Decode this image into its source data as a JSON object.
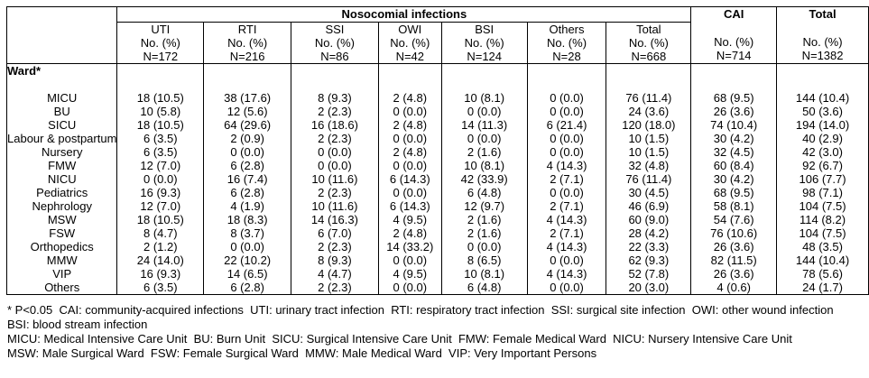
{
  "table": {
    "noso_group_label": "Nosocomial infections",
    "cai_label": "CAI",
    "grand_total_label": "Total",
    "ward_label": "Ward*",
    "no_pct": "No. (%)",
    "columns": [
      {
        "label": "UTI",
        "n": "N=172"
      },
      {
        "label": "RTI",
        "n": "N=216"
      },
      {
        "label": "SSI",
        "n": "N=86"
      },
      {
        "label": "OWI",
        "n": "N=42"
      },
      {
        "label": "BSI",
        "n": "N=124"
      },
      {
        "label": "Others",
        "n": "N=28"
      },
      {
        "label": "Total",
        "n": "N=668"
      }
    ],
    "cai_n": "N=714",
    "grand_n": "N=1382",
    "rows": [
      {
        "ward": "MICU",
        "values": [
          "18 (10.5)",
          "38 (17.6)",
          "8 (9.3)",
          "2 (4.8)",
          "10 (8.1)",
          "0 (0.0)",
          "76 (11.4)",
          "68 (9.5)",
          "144 (10.4)"
        ]
      },
      {
        "ward": "BU",
        "values": [
          "10 (5.8)",
          "12 (5.6)",
          "2 (2.3)",
          "0 (0.0)",
          "0 (0.0)",
          "0 (0.0)",
          "24 (3.6)",
          "26 (3.6)",
          "50 (3.6)"
        ]
      },
      {
        "ward": "SICU",
        "values": [
          "18 (10.5)",
          "64 (29.6)",
          "16 (18.6)",
          "2 (4.8)",
          "14 (11.3)",
          "6 (21.4)",
          "120 (18.0)",
          "74 (10.4)",
          "194 (14.0)"
        ]
      },
      {
        "ward": "Labour & postpartum",
        "values": [
          "6 (3.5)",
          "2 (0.9)",
          "2 (2.3)",
          "0 (0.0)",
          "0 (0.0)",
          "0 (0.0)",
          "10 (1.5)",
          "30 (4.2)",
          "40 (2.9)"
        ]
      },
      {
        "ward": "Nursery",
        "values": [
          "6 (3.5)",
          "0 (0.0)",
          "0 (0.0)",
          "2 (4.8)",
          "2 (1.6)",
          "0 (0.0)",
          "10 (1.5)",
          "32 (4.5)",
          "42 (3.0)"
        ]
      },
      {
        "ward": "FMW",
        "values": [
          "12 (7.0)",
          "6 (2.8)",
          "0 (0.0)",
          "0 (0.0)",
          "10 (8.1)",
          "4 (14.3)",
          "32 (4.8)",
          "60 (8.4)",
          "92 (6.7)"
        ]
      },
      {
        "ward": "NICU",
        "values": [
          "0 (0.0)",
          "16 (7.4)",
          "10 (11.6)",
          "6 (14.3)",
          "42 (33.9)",
          "2 (7.1)",
          "76 (11.4)",
          "30 (4.2)",
          "106 (7.7)"
        ]
      },
      {
        "ward": "Pediatrics",
        "values": [
          "16 (9.3)",
          "6 (2.8)",
          "2 (2.3)",
          "0 (0.0)",
          "6 (4.8)",
          "0 (0.0)",
          "30 (4.5)",
          "68 (9.5)",
          "98 (7.1)"
        ]
      },
      {
        "ward": "Nephrology",
        "values": [
          "12 (7.0)",
          "4 (1.9)",
          "10 (11.6)",
          "6 (14.3)",
          "12 (9.7)",
          "2 (7.1)",
          "46 (6.9)",
          "58 (8.1)",
          "104 (7.5)"
        ]
      },
      {
        "ward": "MSW",
        "values": [
          "18 (10.5)",
          "18 (8.3)",
          "14 (16.3)",
          "4 (9.5)",
          "2 (1.6)",
          "4 (14.3)",
          "60 (9.0)",
          "54 (7.6)",
          "114 (8.2)"
        ]
      },
      {
        "ward": "FSW",
        "values": [
          "8 (4.7)",
          "8 (3.7)",
          "6 (7.0)",
          "2 (4.8)",
          "2 (1.6)",
          "2 (7.1)",
          "28 (4.2)",
          "76 (10.6)",
          "104 (7.5)"
        ]
      },
      {
        "ward": "Orthopedics",
        "values": [
          "2 (1.2)",
          "0 (0.0)",
          "2 (2.3)",
          "14 (33.2)",
          "0 (0.0)",
          "4 (14.3)",
          "22 (3.3)",
          "26 (3.6)",
          "48 (3.5)"
        ]
      },
      {
        "ward": "MMW",
        "values": [
          "24 (14.0)",
          "22 (10.2)",
          "8 (9.3)",
          "0 (0.0)",
          "8 (6.5)",
          "0 (0.0)",
          "62 (9.3)",
          "82 (11.5)",
          "144 (10.4)"
        ]
      },
      {
        "ward": "VIP",
        "values": [
          "16 (9.3)",
          "14 (6.5)",
          "4 (4.7)",
          "4 (9.5)",
          "10 (8.1)",
          "4 (14.3)",
          "52 (7.8)",
          "26 (3.6)",
          "78 (5.6)"
        ]
      },
      {
        "ward": "Others",
        "values": [
          "6 (3.5)",
          "6 (2.8)",
          "2 (2.3)",
          "0 (0.0)",
          "6 (4.8)",
          "0 (0.0)",
          "20 (3.0)",
          "4 (0.6)",
          "24 (1.7)"
        ]
      }
    ]
  },
  "footnotes": [
    "* P<0.05  CAI: community-acquired infections  UTI: urinary tract infection  RTI: respiratory tract infection  SSI: surgical site infection  OWI: other wound infection",
    "BSI: blood stream infection",
    "MICU: Medical Intensive Care Unit  BU: Burn Unit  SICU: Surgical Intensive Care Unit  FMW: Female Medical Ward  NICU: Nursery Intensive Care Unit",
    "MSW: Male Surgical Ward  FSW: Female Surgical Ward  MMW: Male Medical Ward  VIP: Very Important Persons"
  ]
}
